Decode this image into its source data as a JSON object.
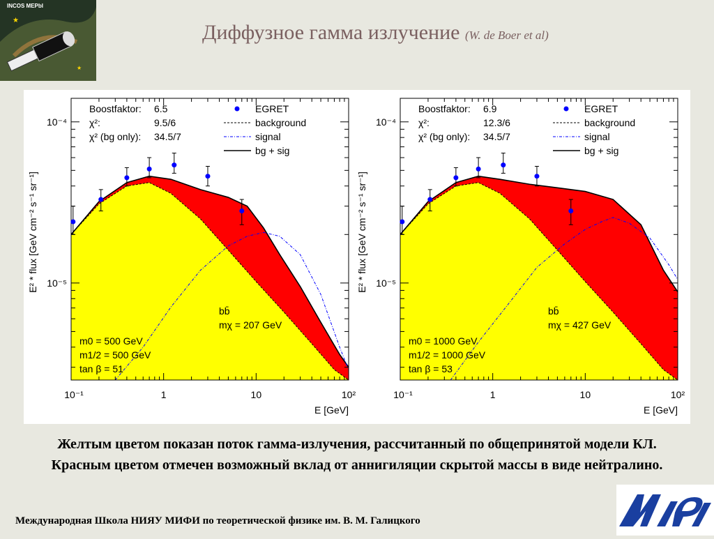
{
  "header": {
    "logo_text": "INCOS MEPbI",
    "title": "Диффузное гамма излучение",
    "title_ref": "(W. de Boer et al)"
  },
  "caption": "Желтым цветом показан поток гамма-излучения, рассчитанный по общепринятой модели КЛ. Красным цветом отмечен возможный вклад от аннигиляции скрытой массы в виде нейтралино.",
  "footer": "Международная Школа НИЯУ МИФИ по теоретической физике им. В. М. Галицкого",
  "colors": {
    "background_fill": "#ffff00",
    "signal_fill": "#ff0000",
    "egret": "#0000ff",
    "logo_blue": "#1a3fa0"
  },
  "chart_data": [
    {
      "type": "area",
      "x_scale": "log",
      "y_scale": "log",
      "xlim": [
        0.1,
        100
      ],
      "ylim": [
        2.5e-06,
        0.00014
      ],
      "xlabel": "E [GeV]",
      "ylabel": "E² * flux [GeV cm⁻² s⁻¹ sr⁻¹]",
      "x_ticks": [
        "10⁻¹",
        "1",
        "10",
        "10²"
      ],
      "y_ticks": [
        "10⁻⁴",
        "10⁻⁵"
      ],
      "stats": [
        {
          "label": "Boostfaktor:",
          "value": "6.5"
        },
        {
          "label": "χ²:",
          "value": "9.5/6"
        },
        {
          "label": "χ² (bg only):",
          "value": "34.5/7"
        }
      ],
      "legend": [
        "EGRET",
        "background",
        "signal",
        "bg + sig"
      ],
      "annotations": [
        "bb̄",
        "mχ = 207 GeV",
        "m0 = 500 GeV",
        "m1/2 = 500 GeV",
        "tan β = 51"
      ],
      "series": [
        {
          "name": "EGRET",
          "x": [
            0.105,
            0.21,
            0.4,
            0.7,
            1.3,
            3.0,
            7.0
          ],
          "y": [
            2.4e-05,
            3.3e-05,
            4.5e-05,
            5.1e-05,
            5.4e-05,
            4.6e-05,
            2.8e-05
          ],
          "yerr_up": [
            3e-05,
            3.8e-05,
            5.2e-05,
            6e-05,
            6.4e-05,
            5.3e-05,
            3.3e-05
          ],
          "yerr_low": [
            2e-05,
            2.8e-05,
            4e-05,
            4.5e-05,
            4.8e-05,
            4e-05,
            2.3e-05
          ]
        },
        {
          "name": "background",
          "x": [
            0.1,
            0.2,
            0.4,
            0.7,
            1.2,
            2.5,
            5,
            10,
            20,
            40,
            70,
            100
          ],
          "y": [
            2e-05,
            3.1e-05,
            4e-05,
            4.2e-05,
            3.6e-05,
            2.5e-05,
            1.6e-05,
            1.02e-05,
            6.6e-06,
            4.2e-06,
            2.9e-06,
            2.5e-06
          ]
        },
        {
          "name": "signal",
          "x": [
            0.3,
            0.6,
            1.2,
            2.5,
            5,
            8,
            12,
            18,
            30,
            50,
            80,
            110
          ],
          "y": [
            2.5e-06,
            4e-06,
            7.1e-06,
            1.2e-05,
            1.7e-05,
            1.95e-05,
            2.06e-05,
            1.95e-05,
            1.5e-05,
            8.5e-06,
            4e-06,
            2.5e-06
          ]
        },
        {
          "name": "bg + sig",
          "x": [
            0.1,
            0.2,
            0.4,
            0.7,
            1.2,
            2.5,
            5,
            8,
            12,
            18,
            30,
            50,
            80,
            100
          ],
          "y": [
            2e-05,
            3.2e-05,
            4.2e-05,
            4.6e-05,
            4.4e-05,
            3.8e-05,
            3.4e-05,
            3e-05,
            2.2e-05,
            1.5e-05,
            9.5e-06,
            5.7e-06,
            3.6e-06,
            3e-06
          ]
        }
      ]
    },
    {
      "type": "area",
      "x_scale": "log",
      "y_scale": "log",
      "xlim": [
        0.1,
        100
      ],
      "ylim": [
        2.5e-06,
        0.00014
      ],
      "xlabel": "E [GeV]",
      "ylabel": "E² * flux [GeV cm⁻² s⁻¹ sr⁻¹]",
      "x_ticks": [
        "10⁻¹",
        "1",
        "10",
        "10²"
      ],
      "y_ticks": [
        "10⁻⁴",
        "10⁻⁵"
      ],
      "stats": [
        {
          "label": "Boostfaktor:",
          "value": "6.9"
        },
        {
          "label": "χ²:",
          "value": "12.3/6"
        },
        {
          "label": "χ² (bg only):",
          "value": "34.5/7"
        }
      ],
      "legend": [
        "EGRET",
        "background",
        "signal",
        "bg + sig"
      ],
      "annotations": [
        "bb̄",
        "mχ = 427 GeV",
        "m0 = 1000 GeV",
        "m1/2 = 1000 GeV",
        "tan β = 53"
      ],
      "series": [
        {
          "name": "EGRET",
          "x": [
            0.105,
            0.21,
            0.4,
            0.7,
            1.3,
            3.0,
            7.0
          ],
          "y": [
            2.4e-05,
            3.3e-05,
            4.5e-05,
            5.1e-05,
            5.4e-05,
            4.6e-05,
            2.8e-05
          ],
          "yerr_up": [
            3e-05,
            3.8e-05,
            5.2e-05,
            6e-05,
            6.4e-05,
            5.3e-05,
            3.3e-05
          ],
          "yerr_low": [
            2e-05,
            2.8e-05,
            4e-05,
            4.5e-05,
            4.8e-05,
            4e-05,
            2.3e-05
          ]
        },
        {
          "name": "background",
          "x": [
            0.1,
            0.2,
            0.4,
            0.7,
            1.2,
            2.5,
            5,
            10,
            20,
            40,
            70,
            100
          ],
          "y": [
            2e-05,
            3.1e-05,
            4e-05,
            4.2e-05,
            3.6e-05,
            2.5e-05,
            1.6e-05,
            1.02e-05,
            6.6e-06,
            4.2e-06,
            2.9e-06,
            2.5e-06
          ]
        },
        {
          "name": "signal",
          "x": [
            0.35,
            0.7,
            1.5,
            3,
            6,
            10,
            15,
            20,
            30,
            50,
            80,
            100
          ],
          "y": [
            2.5e-06,
            4.3e-06,
            7.5e-06,
            1.25e-05,
            1.75e-05,
            2.15e-05,
            2.4e-05,
            2.55e-05,
            2.35e-05,
            1.9e-05,
            1.3e-05,
            1.05e-05
          ]
        },
        {
          "name": "bg + sig",
          "x": [
            0.1,
            0.2,
            0.4,
            0.7,
            1.2,
            2.5,
            5,
            10,
            20,
            40,
            70,
            100
          ],
          "y": [
            2e-05,
            3.2e-05,
            4.2e-05,
            4.6e-05,
            4.4e-05,
            4.1e-05,
            3.9e-05,
            3.7e-05,
            3.3e-05,
            2.3e-05,
            1.2e-05,
            8.8e-06
          ]
        }
      ]
    }
  ]
}
